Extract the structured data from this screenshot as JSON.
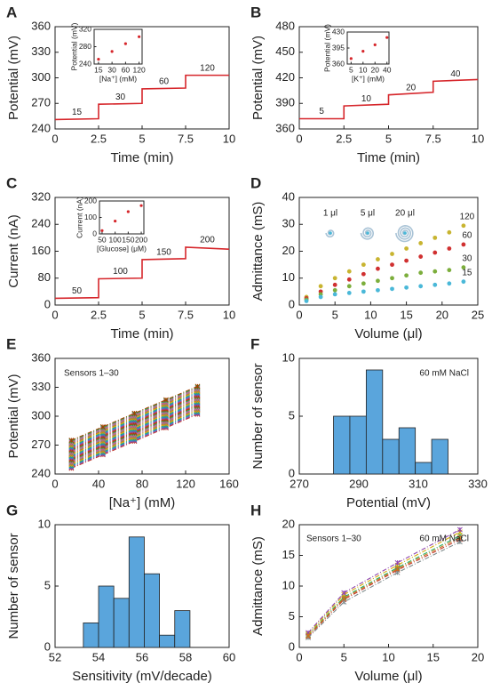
{
  "chart_data": [
    {
      "type": "line",
      "label": "A",
      "xlabel": "Time (min)",
      "ylabel": "Potential (mV)",
      "xlim": [
        0,
        10
      ],
      "xticks": [
        0,
        2.5,
        5,
        7.5,
        10
      ],
      "ylim": [
        240,
        360
      ],
      "yticks": [
        240,
        270,
        300,
        330,
        360
      ],
      "series": [
        {
          "color": "#d6262b",
          "x": [
            0,
            2.5,
            2.5,
            5,
            5,
            7.5,
            7.5,
            10
          ],
          "values": [
            251,
            252,
            269,
            270,
            287,
            288,
            303,
            303
          ]
        }
      ],
      "step_labels": [
        "15",
        "30",
        "60",
        "120"
      ],
      "inset": {
        "type": "scatter",
        "xlabel": "[Na⁺] (mM)",
        "ylabel": "Potential (mV)",
        "xlog": true,
        "xlim": [
          12,
          140
        ],
        "xticks": [
          15,
          30,
          60,
          120
        ],
        "ylim": [
          240,
          320
        ],
        "yticks": [
          240,
          280,
          320
        ],
        "color": "#d6262b",
        "x": [
          15,
          30,
          60,
          120
        ],
        "values": [
          251,
          269,
          287,
          303
        ]
      }
    },
    {
      "type": "line",
      "label": "B",
      "xlabel": "Time (min)",
      "ylabel": "Potential (mV)",
      "xlim": [
        0,
        10
      ],
      "xticks": [
        0,
        2.5,
        5,
        7.5,
        10
      ],
      "ylim": [
        360,
        480
      ],
      "yticks": [
        360,
        390,
        420,
        450,
        480
      ],
      "series": [
        {
          "color": "#d6262b",
          "x": [
            0,
            2.5,
            2.5,
            5,
            5,
            7.5,
            7.5,
            10
          ],
          "values": [
            372,
            372,
            387,
            389,
            400,
            403,
            416,
            418
          ]
        }
      ],
      "step_labels": [
        "5",
        "10",
        "20",
        "40"
      ],
      "inset": {
        "type": "scatter",
        "xlabel": "[K⁺] (mM)",
        "ylabel": "Potential (mV)",
        "xlog": true,
        "xlim": [
          4,
          45
        ],
        "xticks": [
          5,
          10,
          20,
          40
        ],
        "ylim": [
          360,
          430
        ],
        "yticks": [
          360,
          395,
          430
        ],
        "color": "#d6262b",
        "x": [
          5,
          10,
          20,
          40
        ],
        "values": [
          372,
          388,
          402,
          418
        ]
      }
    },
    {
      "type": "line",
      "label": "C",
      "xlabel": "Time (min)",
      "ylabel": "Current (nA)",
      "xlim": [
        0,
        10
      ],
      "xticks": [
        0,
        2.5,
        5,
        7.5,
        10
      ],
      "ylim": [
        0,
        320
      ],
      "yticks": [
        0,
        80,
        160,
        240,
        320
      ],
      "series": [
        {
          "color": "#d6262b",
          "x": [
            0,
            2.5,
            2.5,
            5,
            5,
            7.5,
            7.5,
            10
          ],
          "values": [
            20,
            22,
            78,
            80,
            135,
            138,
            172,
            166
          ]
        }
      ],
      "step_labels": [
        "50",
        "100",
        "150",
        "200"
      ],
      "inset": {
        "type": "scatter",
        "xlabel": "[Glucose] (μM)",
        "ylabel": "Current (nA)",
        "xlim": [
          40,
          210
        ],
        "xticks": [
          50,
          100,
          150,
          200
        ],
        "ylim": [
          0,
          200
        ],
        "yticks": [
          0,
          100,
          200
        ],
        "color": "#d6262b",
        "x": [
          50,
          100,
          150,
          200
        ],
        "values": [
          20,
          78,
          135,
          172
        ]
      }
    },
    {
      "type": "scatter",
      "label": "D",
      "xlabel": "Volume (μl)",
      "ylabel": "Admittance (mS)",
      "xlim": [
        0,
        25
      ],
      "xticks": [
        0,
        5,
        10,
        15,
        20,
        25
      ],
      "ylim": [
        0,
        40
      ],
      "yticks": [
        0,
        10,
        20,
        30,
        40
      ],
      "x": [
        1,
        3,
        5,
        7,
        9,
        11,
        13,
        15,
        17,
        19,
        21,
        23
      ],
      "series": [
        {
          "name": "120",
          "color": "#c8b430",
          "values": [
            3,
            7,
            10,
            12.5,
            15,
            17,
            19,
            21,
            23,
            25,
            27,
            29.5
          ]
        },
        {
          "name": "60",
          "color": "#d03030",
          "values": [
            2.5,
            5,
            7.5,
            9.5,
            11.5,
            13.5,
            15,
            16.5,
            18,
            19.5,
            21,
            22.5
          ]
        },
        {
          "name": "30",
          "color": "#7cae3c",
          "values": [
            2,
            4,
            5.5,
            7,
            8,
            9,
            10,
            11,
            12,
            12.5,
            13,
            14
          ]
        },
        {
          "name": "15",
          "color": "#4ab8d8",
          "values": [
            1.5,
            3,
            4,
            4.5,
            5,
            5.5,
            6,
            6.5,
            7,
            7.5,
            8,
            8.7
          ]
        }
      ],
      "annotations": [
        "1 μl",
        "5 μl",
        "20 μl"
      ]
    },
    {
      "type": "line",
      "label": "E",
      "xlabel": "[Na⁺] (mM)",
      "ylabel": "Potential (mV)",
      "markers": true,
      "dashed": true,
      "xlim": [
        0,
        160
      ],
      "xticks": [
        0,
        40,
        80,
        120,
        160
      ],
      "ylim": [
        240,
        360
      ],
      "yticks": [
        240,
        270,
        300,
        330,
        360
      ],
      "annotations": [
        "Sensors 1–30"
      ],
      "series": [
        {
          "color": "#c0392b",
          "x": [
            15,
            44,
            73,
            102,
            131
          ],
          "values": [
            246,
            260,
            274,
            288,
            302
          ]
        },
        {
          "color": "#8e44ad",
          "x": [
            15,
            44,
            73,
            102,
            131
          ],
          "values": [
            247,
            261,
            275,
            289,
            303
          ]
        },
        {
          "color": "#2e86c1",
          "x": [
            15,
            44,
            73,
            102,
            131
          ],
          "values": [
            248,
            262,
            276,
            290,
            304
          ]
        },
        {
          "color": "#17a589",
          "x": [
            15,
            44,
            73,
            102,
            131
          ],
          "values": [
            249,
            263,
            277,
            291,
            305
          ]
        },
        {
          "color": "#d4ac0d",
          "x": [
            15,
            44,
            73,
            102,
            131
          ],
          "values": [
            250,
            264,
            278,
            292,
            306
          ]
        },
        {
          "color": "#ca6f1e",
          "x": [
            15,
            44,
            73,
            102,
            131
          ],
          "values": [
            251,
            265,
            279,
            293,
            307
          ]
        },
        {
          "color": "#7f8c8d",
          "x": [
            15,
            44,
            73,
            102,
            131
          ],
          "values": [
            252,
            266,
            280,
            294,
            308
          ]
        },
        {
          "color": "#e84393",
          "x": [
            15,
            44,
            73,
            102,
            131
          ],
          "values": [
            253,
            267,
            281,
            295,
            309
          ]
        },
        {
          "color": "#27ae60",
          "x": [
            15,
            44,
            73,
            102,
            131
          ],
          "values": [
            254,
            268,
            282,
            296,
            310
          ]
        },
        {
          "color": "#a04000",
          "x": [
            15,
            44,
            73,
            102,
            131
          ],
          "values": [
            255,
            269,
            283,
            297,
            311
          ]
        },
        {
          "color": "#c0392b",
          "x": [
            15,
            44,
            73,
            102,
            131
          ],
          "values": [
            256,
            270,
            284,
            298,
            312
          ]
        },
        {
          "color": "#8e44ad",
          "x": [
            15,
            44,
            73,
            102,
            131
          ],
          "values": [
            257,
            271,
            285,
            299,
            313
          ]
        },
        {
          "color": "#2e86c1",
          "x": [
            15,
            44,
            73,
            102,
            131
          ],
          "values": [
            258,
            272,
            286,
            300,
            314
          ]
        },
        {
          "color": "#17a589",
          "x": [
            15,
            44,
            73,
            102,
            131
          ],
          "values": [
            259,
            273,
            287,
            301,
            315
          ]
        },
        {
          "color": "#d4ac0d",
          "x": [
            15,
            44,
            73,
            102,
            131
          ],
          "values": [
            260,
            274,
            288,
            302,
            316
          ]
        },
        {
          "color": "#ca6f1e",
          "x": [
            15,
            44,
            73,
            102,
            131
          ],
          "values": [
            261,
            275,
            289,
            303,
            317
          ]
        },
        {
          "color": "#7f8c8d",
          "x": [
            15,
            44,
            73,
            102,
            131
          ],
          "values": [
            262,
            276,
            290,
            304,
            318
          ]
        },
        {
          "color": "#e84393",
          "x": [
            15,
            44,
            73,
            102,
            131
          ],
          "values": [
            263,
            277,
            291,
            305,
            319
          ]
        },
        {
          "color": "#27ae60",
          "x": [
            15,
            44,
            73,
            102,
            131
          ],
          "values": [
            264,
            278,
            292,
            306,
            320
          ]
        },
        {
          "color": "#a04000",
          "x": [
            15,
            44,
            73,
            102,
            131
          ],
          "values": [
            265,
            279,
            293,
            307,
            321
          ]
        },
        {
          "color": "#c0392b",
          "x": [
            15,
            44,
            73,
            102,
            131
          ],
          "values": [
            266,
            280,
            294,
            308,
            322
          ]
        },
        {
          "color": "#8e44ad",
          "x": [
            15,
            44,
            73,
            102,
            131
          ],
          "values": [
            267,
            281,
            295,
            309,
            323
          ]
        },
        {
          "color": "#2e86c1",
          "x": [
            15,
            44,
            73,
            102,
            131
          ],
          "values": [
            268,
            282,
            296,
            310,
            324
          ]
        },
        {
          "color": "#17a589",
          "x": [
            15,
            44,
            73,
            102,
            131
          ],
          "values": [
            269,
            283,
            297,
            311,
            325
          ]
        },
        {
          "color": "#d4ac0d",
          "x": [
            15,
            44,
            73,
            102,
            131
          ],
          "values": [
            270,
            284,
            298,
            312,
            326
          ]
        },
        {
          "color": "#ca6f1e",
          "x": [
            15,
            44,
            73,
            102,
            131
          ],
          "values": [
            271,
            285,
            299,
            313,
            327
          ]
        },
        {
          "color": "#7f8c8d",
          "x": [
            15,
            44,
            73,
            102,
            131
          ],
          "values": [
            272,
            286,
            300,
            314,
            328
          ]
        },
        {
          "color": "#e84393",
          "x": [
            15,
            44,
            73,
            102,
            131
          ],
          "values": [
            273,
            287,
            301,
            315,
            329
          ]
        },
        {
          "color": "#27ae60",
          "x": [
            15,
            44,
            73,
            102,
            131
          ],
          "values": [
            274,
            288,
            302,
            316,
            330
          ]
        },
        {
          "color": "#a04000",
          "x": [
            15,
            44,
            73,
            102,
            131
          ],
          "values": [
            275,
            289,
            303,
            317,
            331
          ]
        }
      ]
    },
    {
      "type": "histogram",
      "label": "F",
      "xlabel": "Potential (mV)",
      "ylabel": "Number of sensor",
      "color": "#5aa5dc",
      "xlim": [
        270,
        330
      ],
      "xticks": [
        270,
        290,
        310,
        330
      ],
      "ylim": [
        0,
        10
      ],
      "yticks": [
        0,
        5,
        10
      ],
      "bins": [
        281.5,
        287,
        292.5,
        298,
        303.5,
        309,
        314.5,
        320
      ],
      "values": [
        5,
        5,
        9,
        3,
        4,
        1,
        3
      ],
      "annotations": [
        "60 mM NaCl"
      ]
    },
    {
      "type": "histogram",
      "label": "G",
      "xlabel": "Sensitivity (mV/decade)",
      "ylabel": "Number of sensor",
      "color": "#5aa5dc",
      "xlim": [
        52,
        60
      ],
      "xticks": [
        52,
        54,
        56,
        58,
        60
      ],
      "ylim": [
        0,
        10
      ],
      "yticks": [
        0,
        5,
        10
      ],
      "bins": [
        53.3,
        54.0,
        54.7,
        55.4,
        56.1,
        56.8,
        57.5,
        58.2
      ],
      "values": [
        2,
        5,
        4,
        9,
        6,
        1,
        3
      ]
    },
    {
      "type": "line",
      "label": "H",
      "xlabel": "Volume (μl)",
      "ylabel": "Admittance (mS)",
      "markers": true,
      "dashed": true,
      "xlim": [
        0,
        20
      ],
      "xticks": [
        0,
        5,
        10,
        15,
        20
      ],
      "ylim": [
        0,
        20
      ],
      "yticks": [
        0,
        5,
        10,
        15,
        20
      ],
      "annotations": [
        "Sensors 1–30",
        "60 mM NaCl"
      ],
      "series": [
        {
          "color": "#c0392b",
          "x": [
            1,
            5,
            11,
            18
          ],
          "values": [
            1.8,
            7.8,
            12.6,
            17.6
          ]
        },
        {
          "color": "#27ae60",
          "x": [
            1,
            5,
            11,
            18
          ],
          "values": [
            2.0,
            8.2,
            13.0,
            18.2
          ]
        },
        {
          "color": "#d4ac0d",
          "x": [
            1,
            5,
            11,
            18
          ],
          "values": [
            2.2,
            8.6,
            13.4,
            18.8
          ]
        },
        {
          "color": "#7f8c8d",
          "x": [
            1,
            5,
            11,
            18
          ],
          "values": [
            1.6,
            7.4,
            12.2,
            17.2
          ]
        },
        {
          "color": "#8e44ad",
          "x": [
            1,
            5,
            11,
            18
          ],
          "values": [
            2.4,
            8.9,
            13.8,
            19.2
          ]
        },
        {
          "color": "#ca6f1e",
          "x": [
            1,
            5,
            11,
            18
          ],
          "values": [
            1.9,
            8.0,
            12.8,
            17.9
          ]
        }
      ]
    }
  ]
}
